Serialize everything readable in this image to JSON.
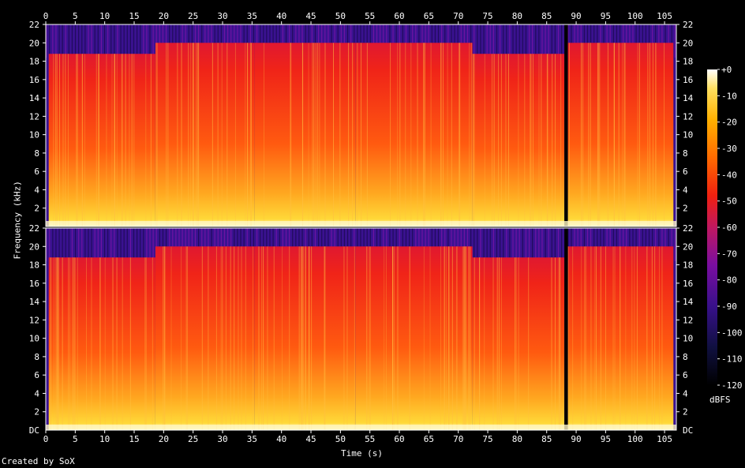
{
  "chart_data": {
    "type": "heatmap",
    "title": "",
    "xlabel": "Time (s)",
    "ylabel": "Frequency (kHz)",
    "channels": [
      "left",
      "right"
    ],
    "x_ticks": [
      0,
      5,
      10,
      15,
      20,
      25,
      30,
      35,
      40,
      45,
      50,
      55,
      60,
      65,
      70,
      75,
      80,
      85,
      90,
      95,
      100,
      105
    ],
    "xlim": [
      0,
      107
    ],
    "y_ticks": [
      2,
      4,
      6,
      8,
      10,
      12,
      14,
      16,
      18,
      20,
      22
    ],
    "y_bottom_label": "DC",
    "ylim_khz": [
      0,
      22
    ],
    "colorbar": {
      "unit": "dBFS",
      "ticks": [
        "+0",
        "-10",
        "-20",
        "-30",
        "-40",
        "-50",
        "-60",
        "-70",
        "-80",
        "-90",
        "-100",
        "-110",
        "-120"
      ],
      "range": [
        -120,
        0
      ]
    },
    "spectral_cutoff_khz": [
      {
        "start": 0.5,
        "end": 18.6,
        "cutoff": 18.8
      },
      {
        "start": 18.6,
        "end": 35.4,
        "cutoff": 20.0
      },
      {
        "start": 35.4,
        "end": 52.6,
        "cutoff": 20.0
      },
      {
        "start": 52.6,
        "end": 72.4,
        "cutoff": 20.0
      },
      {
        "start": 72.4,
        "end": 88.0,
        "cutoff": 18.8
      },
      {
        "start": 88.0,
        "end": 88.6,
        "cutoff": 0
      },
      {
        "start": 88.6,
        "end": 106.5,
        "cutoff": 20.0
      }
    ],
    "credit": "Created by SoX"
  }
}
